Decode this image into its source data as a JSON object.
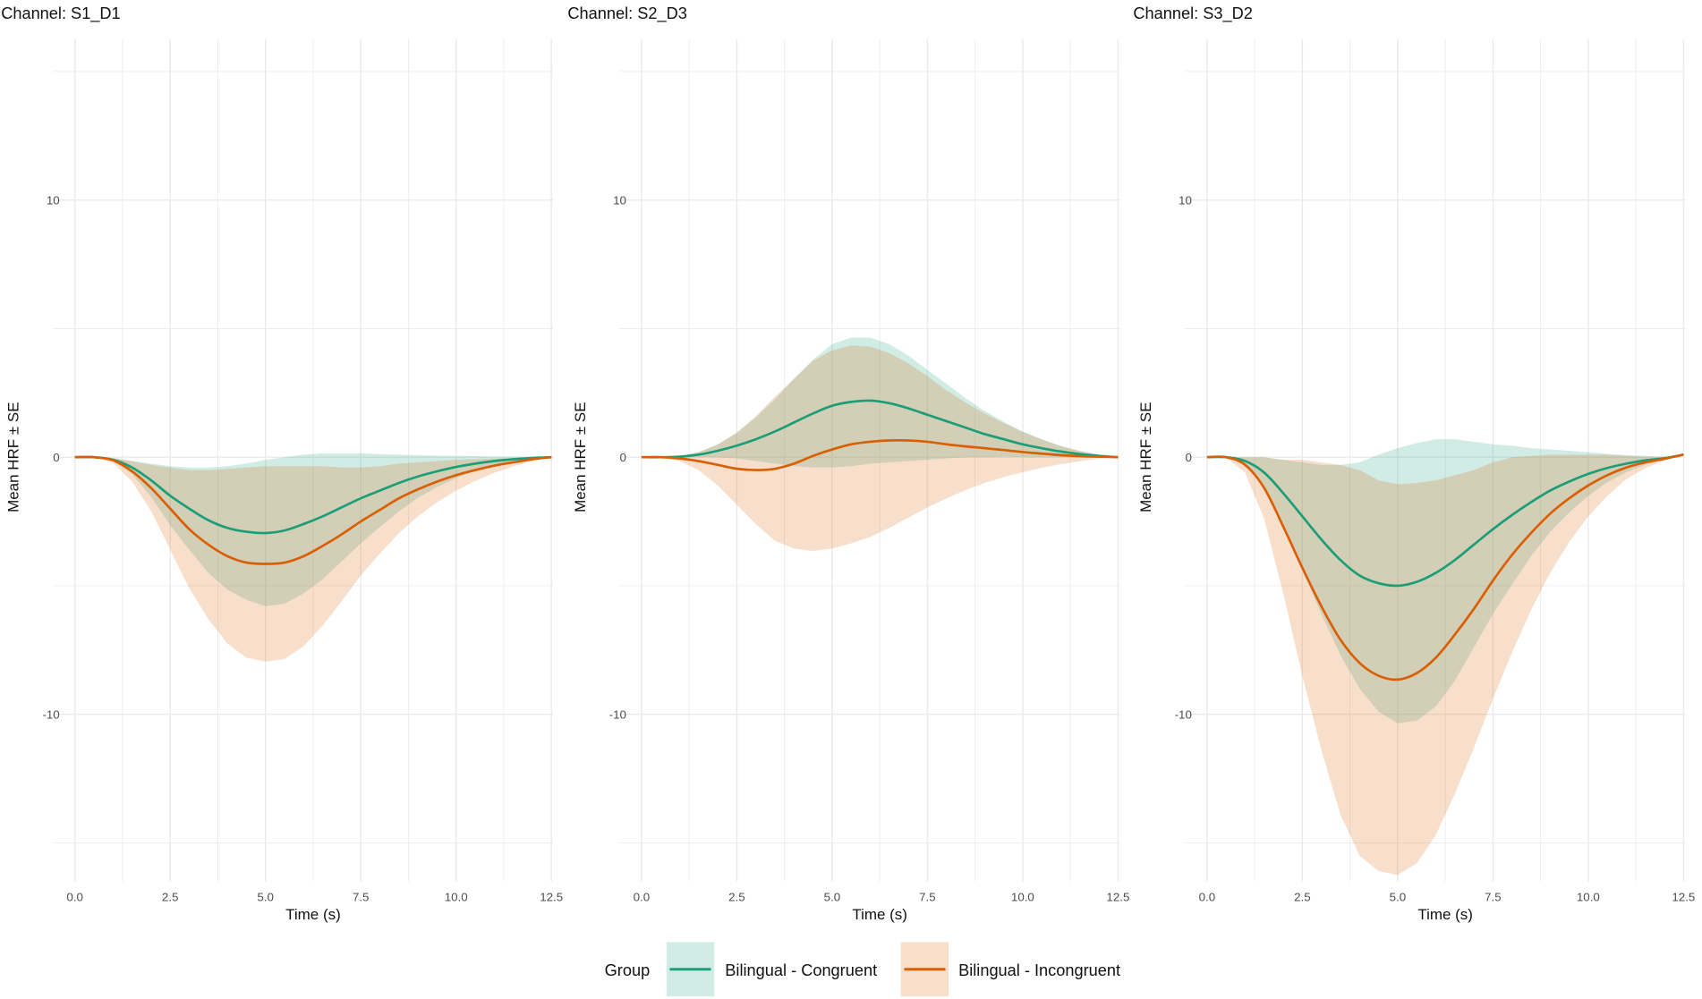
{
  "chart_data": {
    "type": "line",
    "xlabel": "Time (s)",
    "ylabel": "Mean HRF ± SE",
    "xlim": [
      0,
      12.5
    ],
    "ylim": [
      -16.5,
      15
    ],
    "x_ticks": [
      "0.0",
      "2.5",
      "5.0",
      "7.5",
      "10.0",
      "12.5"
    ],
    "y_ticks": [
      "-10",
      "0",
      "10"
    ],
    "grid": true,
    "legend": {
      "title": "Group",
      "placement": "bottom",
      "entries": [
        "Bilingual - Congruent",
        "Bilingual - Incongruent"
      ]
    },
    "colors": {
      "Bilingual - Congruent": "#1b9e77",
      "Bilingual - Incongruent": "#d95f02"
    },
    "x": [
      0,
      0.5,
      1,
      1.5,
      2,
      2.5,
      3,
      3.5,
      4,
      4.5,
      5,
      5.5,
      6,
      6.5,
      7,
      7.5,
      8,
      8.5,
      9,
      9.5,
      10,
      10.5,
      11,
      11.5,
      12,
      12.5
    ],
    "panels": [
      {
        "title": "Channel: S1_D1",
        "series": [
          {
            "name": "Bilingual - Congruent",
            "mean": [
              0,
              0,
              -0.1,
              -0.4,
              -0.9,
              -1.5,
              -2.0,
              -2.45,
              -2.75,
              -2.9,
              -2.95,
              -2.85,
              -2.6,
              -2.3,
              -1.95,
              -1.6,
              -1.3,
              -1.0,
              -0.75,
              -0.55,
              -0.38,
              -0.25,
              -0.15,
              -0.08,
              -0.03,
              0
            ],
            "se": [
              0,
              0,
              0.05,
              0.25,
              0.65,
              1.15,
              1.6,
              2.05,
              2.4,
              2.65,
              2.85,
              2.85,
              2.7,
              2.45,
              2.1,
              1.75,
              1.42,
              1.1,
              0.83,
              0.61,
              0.43,
              0.29,
              0.18,
              0.1,
              0.04,
              0
            ]
          },
          {
            "name": "Bilingual - Incongruent",
            "mean": [
              0,
              0,
              -0.12,
              -0.55,
              -1.2,
              -2.0,
              -2.8,
              -3.4,
              -3.85,
              -4.1,
              -4.15,
              -4.1,
              -3.85,
              -3.45,
              -3.0,
              -2.5,
              -2.05,
              -1.6,
              -1.25,
              -0.95,
              -0.7,
              -0.5,
              -0.33,
              -0.2,
              -0.08,
              0
            ],
            "se": [
              0,
              0,
              0.1,
              0.4,
              0.9,
              1.6,
              2.3,
              2.9,
              3.4,
              3.7,
              3.8,
              3.75,
              3.5,
              3.1,
              2.6,
              2.1,
              1.7,
              1.35,
              1.05,
              0.8,
              0.6,
              0.42,
              0.28,
              0.16,
              0.06,
              0
            ]
          }
        ]
      },
      {
        "title": "Channel: S2_D3",
        "series": [
          {
            "name": "Bilingual - Congruent",
            "mean": [
              0,
              0,
              0.02,
              0.1,
              0.25,
              0.45,
              0.7,
              1.0,
              1.35,
              1.7,
              2.0,
              2.15,
              2.2,
              2.1,
              1.9,
              1.65,
              1.4,
              1.15,
              0.9,
              0.7,
              0.5,
              0.35,
              0.22,
              0.12,
              0.05,
              0
            ],
            "se": [
              0,
              0,
              0.02,
              0.1,
              0.25,
              0.5,
              0.85,
              1.25,
              1.7,
              2.1,
              2.4,
              2.5,
              2.45,
              2.3,
              2.05,
              1.75,
              1.45,
              1.15,
              0.9,
              0.68,
              0.5,
              0.35,
              0.22,
              0.12,
              0.05,
              0
            ]
          },
          {
            "name": "Bilingual - Incongruent",
            "mean": [
              0,
              0,
              -0.05,
              -0.15,
              -0.3,
              -0.45,
              -0.5,
              -0.45,
              -0.25,
              0.05,
              0.3,
              0.5,
              0.6,
              0.65,
              0.65,
              0.6,
              0.5,
              0.42,
              0.35,
              0.28,
              0.2,
              0.14,
              0.08,
              0.04,
              0.02,
              0
            ],
            "se": [
              0,
              0,
              0.1,
              0.35,
              0.8,
              1.4,
              2.1,
              2.8,
              3.3,
              3.7,
              3.85,
              3.85,
              3.7,
              3.4,
              3.0,
              2.55,
              2.1,
              1.7,
              1.35,
              1.05,
              0.78,
              0.55,
              0.35,
              0.2,
              0.08,
              0
            ]
          }
        ]
      },
      {
        "title": "Channel: S3_D2",
        "series": [
          {
            "name": "Bilingual - Congruent",
            "mean": [
              0,
              0,
              -0.15,
              -0.6,
              -1.4,
              -2.3,
              -3.2,
              -4.0,
              -4.6,
              -4.9,
              -5.0,
              -4.85,
              -4.5,
              -4.0,
              -3.4,
              -2.8,
              -2.25,
              -1.75,
              -1.3,
              -0.95,
              -0.65,
              -0.42,
              -0.25,
              -0.12,
              -0.04,
              0.1
            ],
            "se": [
              0,
              0,
              0.15,
              0.6,
              1.3,
              2.1,
              2.9,
              3.7,
              4.4,
              5.0,
              5.35,
              5.4,
              5.2,
              4.7,
              4.0,
              3.3,
              2.7,
              2.1,
              1.6,
              1.2,
              0.85,
              0.55,
              0.33,
              0.17,
              0.06,
              0
            ]
          },
          {
            "name": "Bilingual - Incongruent",
            "mean": [
              0,
              0,
              -0.3,
              -1.2,
              -2.7,
              -4.3,
              -5.8,
              -7.1,
              -8.0,
              -8.5,
              -8.65,
              -8.4,
              -7.8,
              -6.9,
              -5.9,
              -4.8,
              -3.8,
              -2.95,
              -2.2,
              -1.6,
              -1.1,
              -0.7,
              -0.4,
              -0.2,
              -0.06,
              0.1
            ],
            "se": [
              0,
              0,
              0.3,
              1.2,
              2.6,
              4.2,
              5.6,
              6.8,
              7.5,
              7.6,
              7.6,
              7.4,
              6.9,
              6.2,
              5.4,
              4.6,
              3.8,
              3.0,
              2.3,
              1.7,
              1.2,
              0.8,
              0.45,
              0.22,
              0.07,
              0
            ]
          }
        ]
      }
    ]
  }
}
